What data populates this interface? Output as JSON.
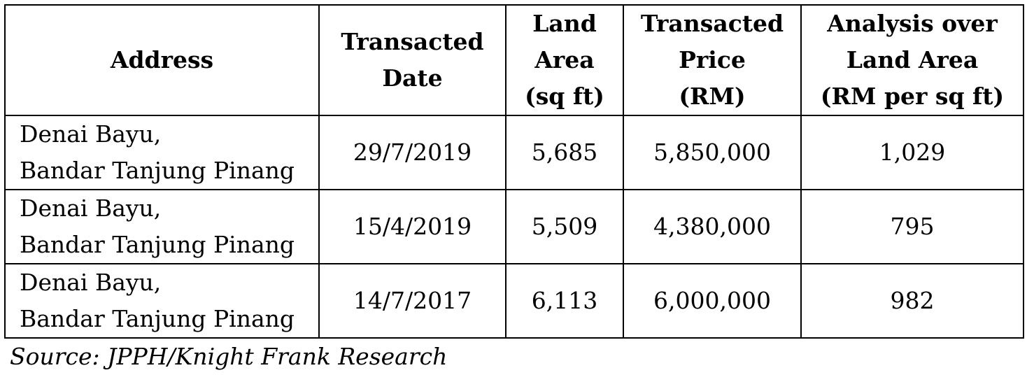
{
  "table": {
    "headers": [
      {
        "lines": [
          "Address"
        ]
      },
      {
        "lines": [
          "Transacted",
          "Date"
        ]
      },
      {
        "lines": [
          "Land",
          "Area",
          "(sq ft)"
        ]
      },
      {
        "lines": [
          "Transacted",
          "Price",
          "(RM)"
        ]
      },
      {
        "lines": [
          "Analysis over",
          "Land Area",
          "(RM per sq ft)"
        ]
      }
    ],
    "rows": [
      {
        "address": [
          "Denai Bayu,",
          "Bandar Tanjung Pinang"
        ],
        "date": "29/7/2019",
        "land_area": "5,685",
        "price": "5,850,000",
        "psf": "1,029"
      },
      {
        "address": [
          "Denai Bayu,",
          "Bandar Tanjung Pinang"
        ],
        "date": "15/4/2019",
        "land_area": "5,509",
        "price": "4,380,000",
        "psf": "795"
      },
      {
        "address": [
          "Denai Bayu,",
          "Bandar Tanjung Pinang"
        ],
        "date": "14/7/2017",
        "land_area": "6,113",
        "price": "6,000,000",
        "psf": "982"
      }
    ]
  },
  "source": "Source: JPPH/Knight Frank Research"
}
